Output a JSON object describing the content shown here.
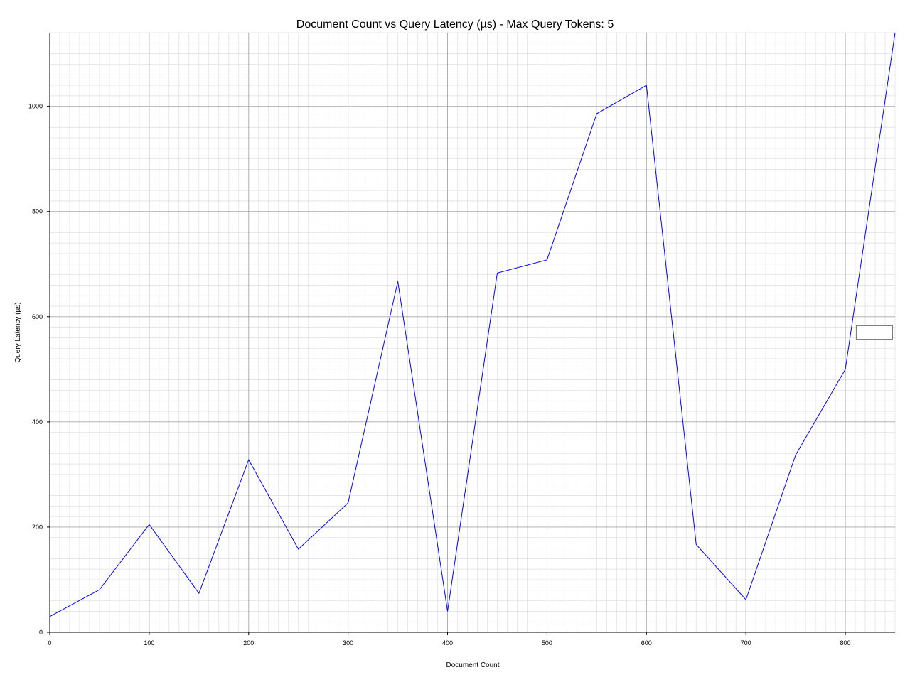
{
  "chart_data": {
    "type": "line",
    "title": "Document Count vs Query Latency (µs) - Max Query Tokens: 5",
    "xlabel": "Document Count",
    "ylabel": "Query Latency (µs)",
    "xlim": [
      0,
      850
    ],
    "ylim": [
      0,
      1140
    ],
    "x_ticks": [
      0,
      100,
      200,
      300,
      400,
      500,
      600,
      700,
      800
    ],
    "y_ticks": [
      0,
      200,
      400,
      600,
      800,
      1000
    ],
    "grid": true,
    "legend": "right",
    "line_color": "#0000ff",
    "series": [
      {
        "x": [
          0,
          50,
          100,
          150,
          200,
          250,
          300,
          350,
          400,
          450,
          500,
          550,
          600,
          650,
          700,
          750,
          800,
          850
        ],
        "values": [
          30,
          81,
          205,
          74,
          328,
          158,
          246,
          667,
          40,
          683,
          708,
          986,
          1040,
          167,
          62,
          337,
          500,
          1140
        ]
      }
    ]
  }
}
